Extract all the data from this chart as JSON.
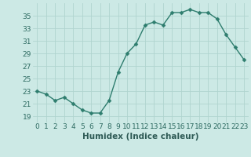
{
  "x": [
    0,
    1,
    2,
    3,
    4,
    5,
    6,
    7,
    8,
    9,
    10,
    11,
    12,
    13,
    14,
    15,
    16,
    17,
    18,
    19,
    20,
    21,
    22,
    23
  ],
  "y": [
    23,
    22.5,
    21.5,
    22,
    21,
    20,
    19.5,
    19.5,
    21.5,
    26,
    29,
    30.5,
    33.5,
    34,
    33.5,
    35.5,
    35.5,
    36,
    35.5,
    35.5,
    34.5,
    32,
    30,
    28
  ],
  "line_color": "#2e7d6e",
  "marker": "D",
  "marker_size": 2.5,
  "bg_color": "#cce9e5",
  "grid_color": "#b0d4cf",
  "xlabel": "Humidex (Indice chaleur)",
  "xlim": [
    -0.5,
    23.5
  ],
  "ylim": [
    18,
    37
  ],
  "yticks": [
    19,
    21,
    23,
    25,
    27,
    29,
    31,
    33,
    35
  ],
  "xticks": [
    0,
    1,
    2,
    3,
    4,
    5,
    6,
    7,
    8,
    9,
    10,
    11,
    12,
    13,
    14,
    15,
    16,
    17,
    18,
    19,
    20,
    21,
    22,
    23
  ],
  "tick_label_fontsize": 6.5,
  "xlabel_fontsize": 7.5,
  "line_width": 1.0
}
